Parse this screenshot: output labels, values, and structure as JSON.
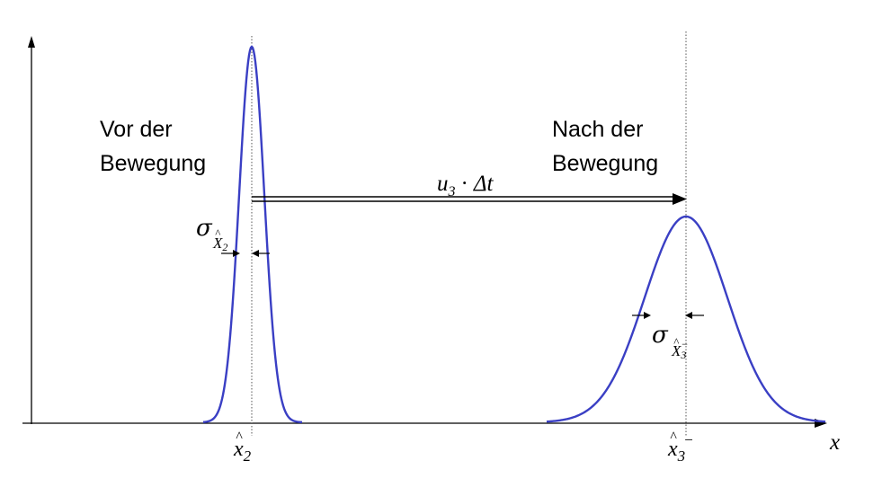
{
  "labels": {
    "before_line1": "Vor der",
    "before_line2": "Bewegung",
    "after_line1": "Nach der",
    "after_line2": "Bewegung"
  },
  "math": {
    "motion_u": "u",
    "motion_sub": "3",
    "motion_dot": "·",
    "motion_delta_t": "Δt",
    "sigma": "σ",
    "sigma1_sub_base": "X",
    "sigma1_sub_index": "2",
    "sigma2_sub_base": "X",
    "sigma2_sub_index": "3",
    "sigma2_sub_sup": "−",
    "x_axis": "x",
    "tick1_base": "x",
    "tick1_index": "2",
    "tick2_base": "x",
    "tick2_index": "3",
    "tick2_sup": "−",
    "hat": "^"
  },
  "colors": {
    "curve": "#3a3fc4",
    "axis": "#000000"
  }
}
